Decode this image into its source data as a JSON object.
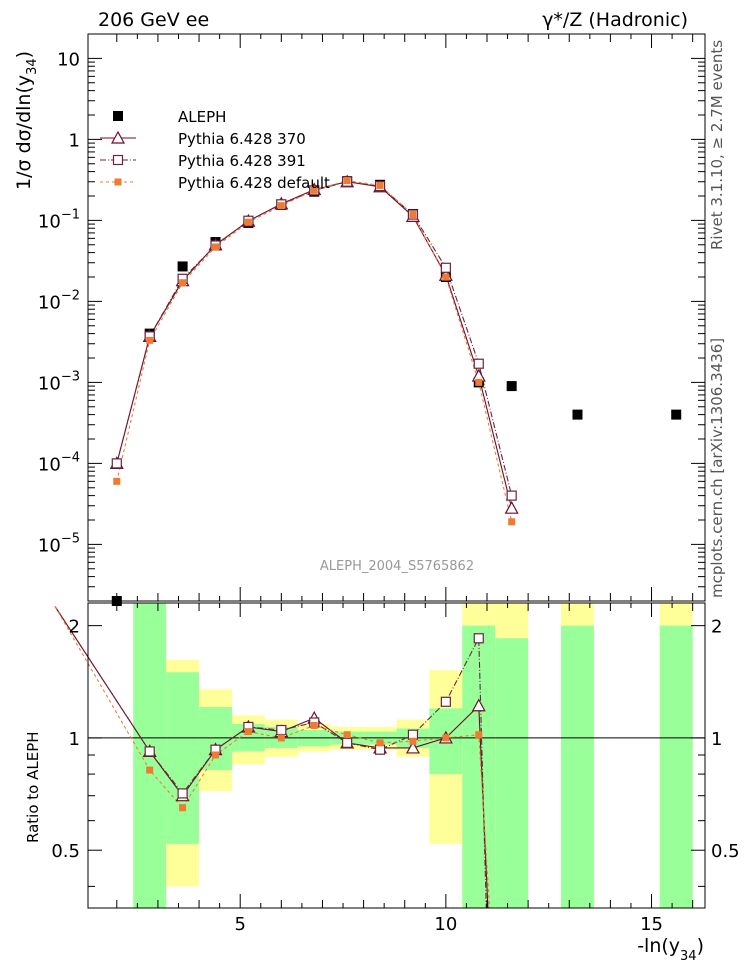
{
  "header": {
    "left": "206 GeV ee",
    "right": "γ*/Z (Hadronic)"
  },
  "side_labels": {
    "rivet": "Rivet 3.1.10, ≥ 2.7M events",
    "mcplots": "mcplots.cern.ch [arXiv:1306.3436]"
  },
  "analysis_id": "ALEPH_2004_S5765862",
  "colors": {
    "data": "#000000",
    "p370": "#6b0f2a",
    "p391": "#6b2440",
    "pdef": "#f07a30",
    "band_inner": "#99ff99",
    "band_outer": "#ffff99"
  },
  "chart_data": [
    {
      "type": "scatter",
      "panel": "main",
      "ylabel": "1/σ dσ/dln(y34)",
      "yscale": "log",
      "ylim": [
        2e-06,
        20
      ],
      "xlim": [
        1.3,
        16.3
      ],
      "yticks": [
        1e-05,
        0.0001,
        0.001,
        0.01,
        0.1,
        1,
        10
      ],
      "ytick_labels": [
        {
          "base": "10",
          "exp": "−5"
        },
        {
          "base": "10",
          "exp": "−4"
        },
        {
          "base": "10",
          "exp": "−3"
        },
        {
          "base": "10",
          "exp": "−2"
        },
        {
          "base": "10",
          "exp": "−1"
        },
        {
          "base": "1",
          "exp": ""
        },
        {
          "base": "10",
          "exp": ""
        }
      ],
      "legend": [
        {
          "key": "data",
          "label": "ALEPH"
        },
        {
          "key": "p370",
          "label": "Pythia 6.428 370"
        },
        {
          "key": "p391",
          "label": "Pythia 6.428 391"
        },
        {
          "key": "pdef",
          "label": "Pythia 6.428 default"
        }
      ],
      "series": [
        {
          "name": "ALEPH",
          "key": "data",
          "x": [
            2.0,
            2.8,
            3.6,
            4.4,
            5.2,
            6.0,
            6.8,
            7.6,
            8.4,
            9.2,
            10.0,
            10.8,
            11.6,
            13.2,
            15.6
          ],
          "y": [
            2e-06,
            0.004,
            0.027,
            0.054,
            0.093,
            0.155,
            0.226,
            0.305,
            0.275,
            0.12,
            0.02,
            0.001,
            0.0009,
            0.0004,
            0.0004
          ]
        },
        {
          "name": "Pythia 6.428 370",
          "key": "p370",
          "x": [
            2.0,
            2.8,
            3.6,
            4.4,
            5.2,
            6.0,
            6.8,
            7.6,
            8.4,
            9.2,
            10.0,
            10.8,
            11.6
          ],
          "y": [
            0.0001,
            0.0037,
            0.018,
            0.05,
            0.098,
            0.16,
            0.24,
            0.3,
            0.26,
            0.112,
            0.021,
            0.0012,
            2.8e-05
          ]
        },
        {
          "name": "Pythia 6.428 391",
          "key": "p391",
          "x": [
            2.0,
            2.8,
            3.6,
            4.4,
            5.2,
            6.0,
            6.8,
            7.6,
            8.4,
            9.2,
            10.0,
            10.8,
            11.6
          ],
          "y": [
            0.0001,
            0.0037,
            0.019,
            0.049,
            0.099,
            0.158,
            0.235,
            0.3,
            0.265,
            0.118,
            0.026,
            0.0017,
            4e-05
          ]
        },
        {
          "name": "Pythia 6.428 default",
          "key": "pdef",
          "x": [
            2.0,
            2.8,
            3.6,
            4.4,
            5.2,
            6.0,
            6.8,
            7.6,
            8.4,
            9.2,
            10.0,
            10.8,
            11.6
          ],
          "y": [
            6e-05,
            0.0033,
            0.017,
            0.047,
            0.095,
            0.152,
            0.235,
            0.31,
            0.27,
            0.118,
            0.02,
            0.001,
            1.9e-05
          ]
        }
      ]
    },
    {
      "type": "line",
      "panel": "ratio",
      "xlabel": "-ln(y34)",
      "ylabel": "Ratio to ALEPH",
      "ylim": [
        0.35,
        2.3
      ],
      "xlim": [
        1.3,
        16.3
      ],
      "xticks": [
        5,
        10,
        15
      ],
      "yticks": [
        0.5,
        1,
        2
      ],
      "bands": [
        {
          "x0": 2.4,
          "x1": 3.2,
          "in_lo": 0.35,
          "in_hi": 2.3,
          "out_lo": 0.35,
          "out_hi": 2.3
        },
        {
          "x0": 3.2,
          "x1": 4.0,
          "in_lo": 0.52,
          "in_hi": 1.5,
          "out_lo": 0.4,
          "out_hi": 1.62
        },
        {
          "x0": 4.0,
          "x1": 4.8,
          "in_lo": 0.82,
          "in_hi": 1.21,
          "out_lo": 0.72,
          "out_hi": 1.35
        },
        {
          "x0": 4.8,
          "x1": 5.6,
          "in_lo": 0.92,
          "in_hi": 1.09,
          "out_lo": 0.85,
          "out_hi": 1.15
        },
        {
          "x0": 5.6,
          "x1": 6.4,
          "in_lo": 0.94,
          "in_hi": 1.07,
          "out_lo": 0.89,
          "out_hi": 1.12
        },
        {
          "x0": 6.4,
          "x1": 7.2,
          "in_lo": 0.95,
          "in_hi": 1.05,
          "out_lo": 0.92,
          "out_hi": 1.09
        },
        {
          "x0": 7.2,
          "x1": 8.0,
          "in_lo": 0.96,
          "in_hi": 1.04,
          "out_lo": 0.93,
          "out_hi": 1.07
        },
        {
          "x0": 8.0,
          "x1": 8.8,
          "in_lo": 0.96,
          "in_hi": 1.04,
          "out_lo": 0.93,
          "out_hi": 1.07
        },
        {
          "x0": 8.8,
          "x1": 9.6,
          "in_lo": 0.94,
          "in_hi": 1.06,
          "out_lo": 0.89,
          "out_hi": 1.12
        },
        {
          "x0": 9.6,
          "x1": 10.4,
          "in_lo": 0.8,
          "in_hi": 1.2,
          "out_lo": 0.52,
          "out_hi": 1.52
        },
        {
          "x0": 10.4,
          "x1": 11.2,
          "in_lo": 0.35,
          "in_hi": 2.0,
          "out_lo": 0.35,
          "out_hi": 2.3
        },
        {
          "x0": 11.2,
          "x1": 12.0,
          "in_lo": 0.35,
          "in_hi": 1.85,
          "out_lo": 0.35,
          "out_hi": 2.3
        },
        {
          "x0": 12.8,
          "x1": 13.6,
          "in_lo": 0.35,
          "in_hi": 2.0,
          "out_lo": 0.35,
          "out_hi": 2.3
        },
        {
          "x0": 15.2,
          "x1": 16.0,
          "in_lo": 0.35,
          "in_hi": 2.0,
          "out_lo": 0.35,
          "out_hi": 2.3
        }
      ],
      "series": [
        {
          "name": "Pythia 6.428 370",
          "key": "p370",
          "x": [
            0.5,
            2.8,
            3.6,
            4.4,
            5.2,
            6.0,
            6.8,
            7.6,
            8.4,
            9.2,
            10.0,
            10.8,
            11.05
          ],
          "y": [
            2.25,
            0.92,
            0.7,
            0.93,
            1.07,
            1.04,
            1.13,
            0.97,
            0.94,
            0.94,
            1.0,
            1.22,
            0.3
          ],
          "markers_from": 1,
          "markers_to": 11
        },
        {
          "name": "Pythia 6.428 391",
          "key": "p391",
          "x": [
            0.5,
            2.8,
            3.6,
            4.4,
            5.2,
            6.0,
            6.8,
            7.6,
            8.4,
            9.2,
            10.0,
            10.8,
            11.0
          ],
          "y": [
            2.25,
            0.92,
            0.71,
            0.93,
            1.07,
            1.05,
            1.1,
            0.97,
            0.93,
            1.02,
            1.25,
            1.85,
            0.3
          ],
          "markers_from": 1,
          "markers_to": 11
        },
        {
          "name": "Pythia 6.428 default",
          "key": "pdef",
          "x": [
            0.5,
            2.8,
            3.6,
            4.4,
            5.2,
            6.0,
            6.8,
            7.6,
            8.4,
            9.2,
            10.0,
            10.8,
            11.1
          ],
          "y": [
            2.25,
            0.82,
            0.65,
            0.9,
            1.04,
            1.0,
            1.08,
            1.02,
            0.97,
            0.98,
            1.0,
            1.02,
            0.3
          ],
          "markers_from": 1,
          "markers_to": 11
        }
      ]
    }
  ]
}
